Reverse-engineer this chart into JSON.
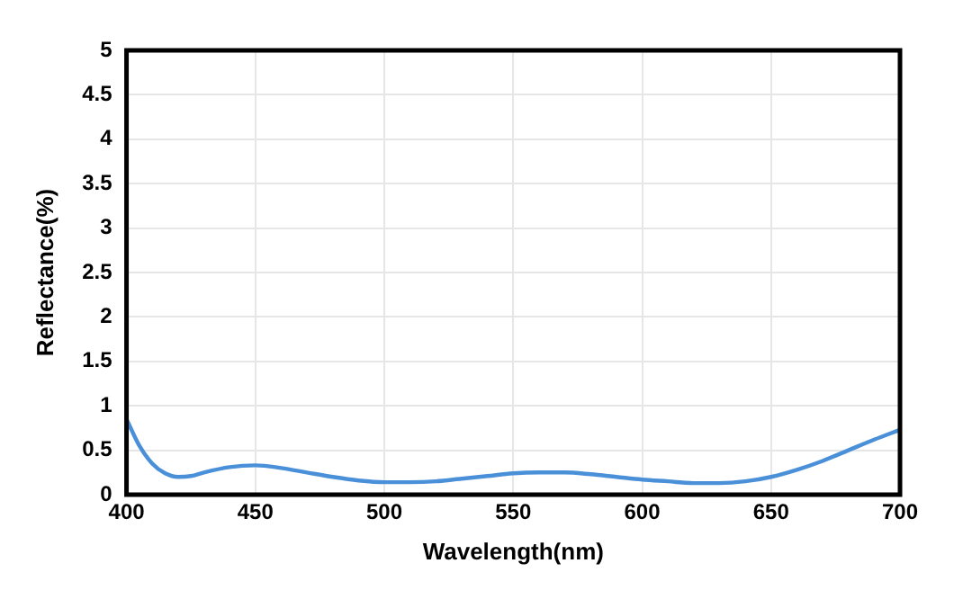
{
  "chart_data": {
    "type": "line",
    "xlabel": "Wavelength(nm)",
    "ylabel": "Reflectance(%)",
    "x": [
      400,
      405,
      410,
      415,
      420,
      425,
      430,
      440,
      450,
      460,
      470,
      480,
      490,
      500,
      510,
      520,
      530,
      540,
      550,
      560,
      570,
      580,
      590,
      600,
      610,
      620,
      630,
      640,
      650,
      660,
      670,
      680,
      690,
      700
    ],
    "series": [
      {
        "color": "#4a90d9",
        "values": [
          0.85,
          0.55,
          0.35,
          0.24,
          0.2,
          0.21,
          0.25,
          0.31,
          0.33,
          0.3,
          0.25,
          0.2,
          0.16,
          0.14,
          0.14,
          0.15,
          0.18,
          0.21,
          0.24,
          0.25,
          0.25,
          0.23,
          0.2,
          0.17,
          0.15,
          0.13,
          0.13,
          0.15,
          0.2,
          0.28,
          0.38,
          0.5,
          0.62,
          0.73
        ]
      }
    ],
    "xlim": [
      400,
      700
    ],
    "xticks": [
      400,
      450,
      500,
      550,
      600,
      650,
      700
    ],
    "ylim": [
      0,
      5
    ],
    "yticks": [
      0,
      0.5,
      1,
      1.5,
      2,
      2.5,
      3,
      3.5,
      4,
      4.5,
      5
    ],
    "grid": true,
    "legend": false,
    "marker": "none",
    "line_style": "solid"
  }
}
